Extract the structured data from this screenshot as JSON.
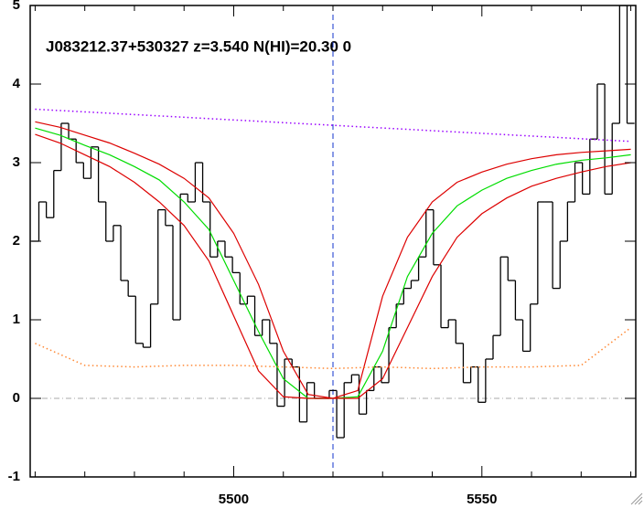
{
  "chart_data": {
    "type": "spectrum",
    "title": "J083212.37+530327 z=3.540 N(HI)=20.30 0",
    "xlim": [
      5459,
      5581
    ],
    "ylim": [
      -1,
      5
    ],
    "xticks": [
      5500,
      5550
    ],
    "xminorticks": [
      5460,
      5470,
      5480,
      5490,
      5510,
      5520,
      5530,
      5540,
      5560,
      5570,
      5580
    ],
    "yticks": [
      -1,
      0,
      1,
      2,
      3,
      4,
      5
    ],
    "reference_lines": {
      "y": 0,
      "x": 5520
    },
    "series": [
      {
        "color": "#000000",
        "style": "step",
        "x": [
          5460,
          5461.5,
          5463,
          5464.5,
          5466,
          5467.5,
          5469,
          5470.5,
          5472,
          5473.5,
          5475,
          5476.5,
          5478,
          5479.5,
          5481,
          5482.5,
          5484,
          5485.5,
          5487,
          5488.5,
          5490,
          5491.5,
          5493,
          5494.5,
          5496,
          5497.5,
          5499,
          5500.5,
          5502,
          5503.5,
          5505,
          5506.5,
          5508,
          5509.5,
          5511,
          5512.5,
          5514,
          5515.5,
          5517,
          5518.5,
          5520,
          5521.5,
          5523,
          5524.5,
          5526,
          5527.5,
          5529,
          5530.5,
          5532,
          5533.5,
          5535,
          5536.5,
          5538,
          5539.5,
          5541,
          5542.5,
          5544,
          5545.5,
          5547,
          5548.5,
          5550,
          5551.5,
          5553,
          5554.5,
          5556,
          5557.5,
          5559,
          5560.5,
          5562,
          5563.5,
          5565,
          5566.5,
          5568,
          5569.5,
          5571,
          5572.5,
          5574,
          5575.5,
          5577,
          5578.5,
          5580
        ],
        "values": [
          2.0,
          2.5,
          2.3,
          2.9,
          3.5,
          3.3,
          3.0,
          2.8,
          3.2,
          2.5,
          2.0,
          2.2,
          1.5,
          1.3,
          0.7,
          0.65,
          1.2,
          2.4,
          2.2,
          1.0,
          2.6,
          2.5,
          3.0,
          2.5,
          1.8,
          2.0,
          1.8,
          1.6,
          1.2,
          1.3,
          0.8,
          1.0,
          0.7,
          -0.1,
          0.5,
          0.4,
          -0.3,
          0.2,
          0.0,
          0.0,
          0.1,
          -0.5,
          0.2,
          0.3,
          -0.2,
          0.1,
          0.4,
          0.2,
          0.9,
          1.2,
          1.4,
          1.5,
          1.8,
          2.4,
          1.7,
          0.9,
          1.0,
          0.7,
          0.2,
          0.4,
          -0.05,
          0.5,
          0.8,
          1.8,
          1.5,
          1.0,
          0.6,
          1.2,
          2.5,
          2.5,
          1.4,
          2.0,
          2.5,
          3.0,
          2.6,
          3.3,
          4.0,
          2.6,
          3.5,
          5.0,
          3.5
        ]
      },
      {
        "color": "#00dd00",
        "style": "solid",
        "x": [
          5460,
          5465,
          5470,
          5475,
          5480,
          5485,
          5490,
          5495,
          5500,
          5505,
          5510,
          5515,
          5520,
          5525,
          5530,
          5535,
          5540,
          5545,
          5550,
          5555,
          5560,
          5565,
          5570,
          5575,
          5580
        ],
        "values": [
          3.44,
          3.35,
          3.22,
          3.1,
          2.95,
          2.78,
          2.5,
          2.15,
          1.5,
          0.85,
          0.25,
          0.0,
          0.0,
          0.02,
          0.6,
          1.55,
          2.1,
          2.45,
          2.65,
          2.8,
          2.9,
          2.98,
          3.03,
          3.06,
          3.1
        ]
      },
      {
        "color": "#dd0000",
        "style": "solid",
        "x": [
          5460,
          5465,
          5470,
          5475,
          5480,
          5485,
          5490,
          5495,
          5500,
          5505,
          5510,
          5515,
          5520,
          5525,
          5530,
          5535,
          5540,
          5545,
          5550,
          5555,
          5560,
          5565,
          5570,
          5575,
          5580
        ],
        "values": [
          3.52,
          3.45,
          3.35,
          3.25,
          3.12,
          2.98,
          2.8,
          2.55,
          2.1,
          1.45,
          0.6,
          0.05,
          0.0,
          0.1,
          1.3,
          2.05,
          2.5,
          2.75,
          2.88,
          2.98,
          3.05,
          3.1,
          3.13,
          3.15,
          3.17
        ]
      },
      {
        "color": "#dd0000",
        "style": "solid",
        "x": [
          5460,
          5465,
          5470,
          5475,
          5480,
          5485,
          5490,
          5495,
          5500,
          5505,
          5510,
          5515,
          5520,
          5525,
          5530,
          5535,
          5540,
          5545,
          5550,
          5555,
          5560,
          5565,
          5570,
          5575,
          5580
        ],
        "values": [
          3.36,
          3.25,
          3.1,
          2.95,
          2.75,
          2.5,
          2.2,
          1.75,
          1.05,
          0.35,
          0.02,
          0.0,
          0.0,
          0.0,
          0.25,
          0.9,
          1.55,
          2.05,
          2.35,
          2.55,
          2.7,
          2.8,
          2.88,
          2.95,
          3.0
        ]
      },
      {
        "color": "#9900ff",
        "style": "dotted",
        "x": [
          5460,
          5580
        ],
        "values": [
          3.68,
          3.27
        ]
      },
      {
        "color": "#ff8833",
        "style": "dotted",
        "x": [
          5460,
          5470,
          5480,
          5490,
          5500,
          5510,
          5520,
          5530,
          5540,
          5550,
          5560,
          5570,
          5580
        ],
        "values": [
          0.7,
          0.42,
          0.4,
          0.42,
          0.42,
          0.4,
          0.38,
          0.4,
          0.38,
          0.4,
          0.4,
          0.42,
          0.9
        ]
      }
    ]
  }
}
